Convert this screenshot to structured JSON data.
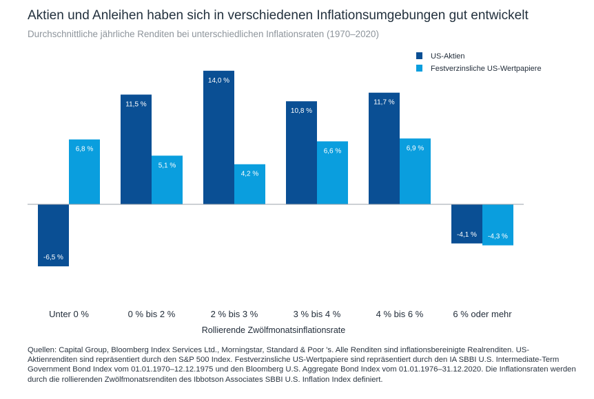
{
  "title": "Aktien und Anleihen haben sich in verschiedenen Inflationsumgebungen gut entwickelt",
  "subtitle": "Durchschnittliche jährliche Renditen bei unterschiedlichen Inflationsraten (1970–2020)",
  "footnote": "Quellen: Capital Group, Bloomberg Index Services Ltd., Morningstar, Standard & Poor 's. Alle Renditen sind inflationsbereinigte Realrenditen. US-Aktienrenditen sind repräsentiert durch den S&P 500 Index. Festverzinsliche US-Wertpapiere sind repräsentiert durch den IA SBBI U.S. Intermediate-Term Government Bond Index vom 01.01.1970–12.12.1975 und den Bloomberg U.S. Aggregate Bond Index vom 01.01.1976–31.12.2020. Die Inflationsraten werden durch die rollierenden Zwölfmonatsrenditen des Ibbotson Associates SBBI U.S. Inflation Index definiert.",
  "colors": {
    "series1": "#0a4f94",
    "series2": "#0a9ede",
    "axis": "#9aa2aa"
  },
  "chart_data": {
    "type": "bar",
    "title": "Aktien und Anleihen haben sich in verschiedenen Inflationsumgebungen gut entwickelt",
    "xlabel": "Rollierende Zwölfmonatsinflationsrate",
    "ylabel": "",
    "ylim": [
      -7,
      14.5
    ],
    "grid": false,
    "legend": "top-right",
    "categories": [
      "Unter 0 %",
      "0 % bis 2 %",
      "2 % bis 3 %",
      "3 % bis 4 %",
      "4 % bis 6 %",
      "6 % oder mehr"
    ],
    "series": [
      {
        "name": "US-Aktien",
        "values": [
          -6.5,
          11.5,
          14.0,
          10.8,
          11.7,
          -4.1
        ],
        "labels": [
          "-6,5 %",
          "11,5 %",
          "14,0 %",
          "10,8 %",
          "11,7 %",
          "-4,1 %"
        ]
      },
      {
        "name": "Festverzinsliche US-Wertpapiere",
        "values": [
          6.8,
          5.1,
          4.2,
          6.6,
          6.9,
          -4.3
        ],
        "labels": [
          "6,8 %",
          "5,1 %",
          "4,2 %",
          "6,6 %",
          "6,9 %",
          "-4,3 %"
        ]
      }
    ]
  }
}
